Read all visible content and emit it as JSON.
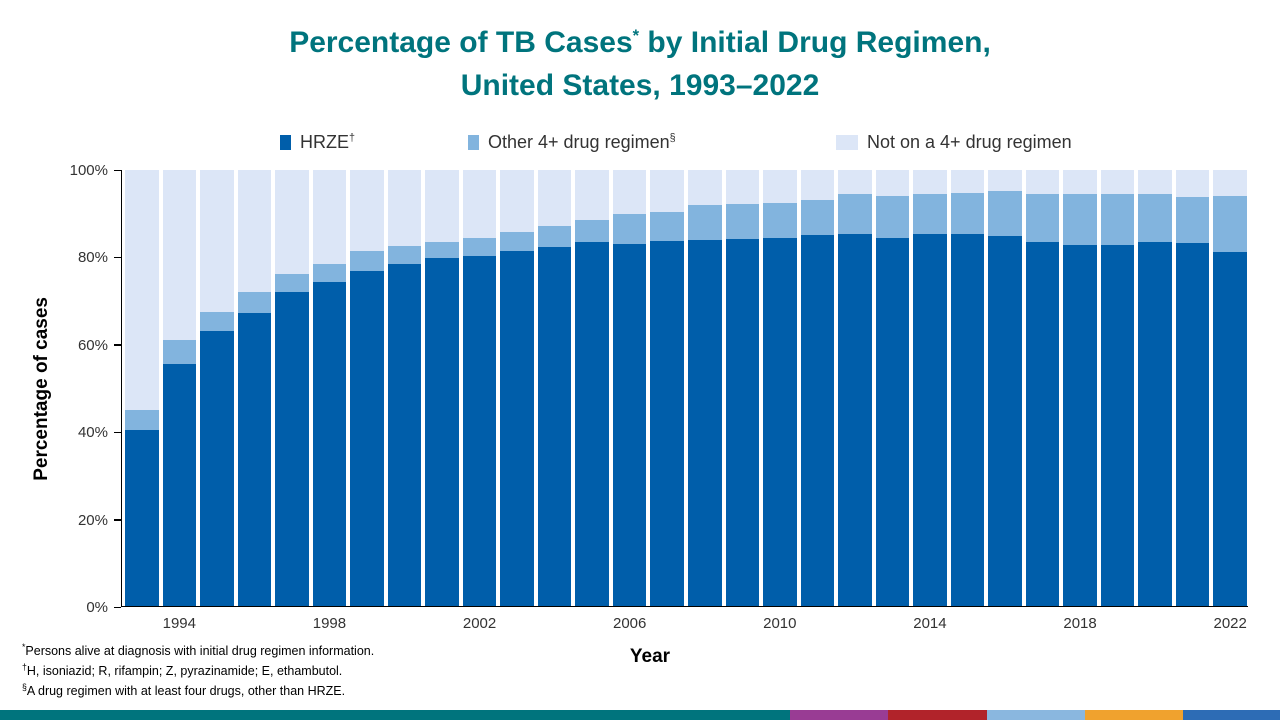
{
  "title": {
    "text_before_sup": "Percentage of TB Cases",
    "sup": "*",
    "text_after_sup": " by Initial Drug Regimen,",
    "line2": "United States, 1993–2022"
  },
  "legend": {
    "items": [
      {
        "label": "HRZE",
        "sup": "†",
        "color": "#005EAA"
      },
      {
        "label": "Other 4+ drug regimen",
        "sup": "§",
        "color": "#82B4DE"
      },
      {
        "label": "Not on a 4+ drug regimen",
        "sup": "",
        "color": "#DCE6F7"
      }
    ]
  },
  "axes": {
    "y_label": "Percentage of cases",
    "x_label": "Year",
    "y_ticks": [
      "0%",
      "20%",
      "40%",
      "60%",
      "80%",
      "100%"
    ],
    "x_ticks": [
      "1994",
      "1998",
      "2002",
      "2006",
      "2010",
      "2014",
      "2018",
      "2022"
    ]
  },
  "chart_data": {
    "type": "bar",
    "stacked": true,
    "title": "Percentage of TB Cases by Initial Drug Regimen, United States, 1993–2022",
    "xlabel": "Year",
    "ylabel": "Percentage of cases",
    "ylim": [
      0,
      100
    ],
    "legend_position": "top",
    "grid": false,
    "categories": [
      1993,
      1994,
      1995,
      1996,
      1997,
      1998,
      1999,
      2000,
      2001,
      2002,
      2003,
      2004,
      2005,
      2006,
      2007,
      2008,
      2009,
      2010,
      2011,
      2012,
      2013,
      2014,
      2015,
      2016,
      2017,
      2018,
      2019,
      2020,
      2021,
      2022
    ],
    "series": [
      {
        "name": "HRZE",
        "color": "#005EAA",
        "values": [
          40.3,
          55.5,
          63.0,
          67.2,
          72.0,
          74.4,
          76.8,
          78.4,
          79.8,
          80.3,
          81.4,
          82.3,
          83.4,
          83.1,
          83.7,
          83.9,
          84.2,
          84.4,
          85.0,
          85.4,
          84.4,
          85.4,
          85.4,
          84.9,
          83.4,
          82.9,
          82.9,
          83.4,
          83.3,
          81.1
        ]
      },
      {
        "name": "Other 4+ drug regimen",
        "color": "#82B4DE",
        "values": [
          4.7,
          5.5,
          4.5,
          4.8,
          4.2,
          4.1,
          4.6,
          4.2,
          3.8,
          4.1,
          4.5,
          4.8,
          5.2,
          6.8,
          6.6,
          8.0,
          7.9,
          8.1,
          8.2,
          9.2,
          9.7,
          9.2,
          9.3,
          10.2,
          11.2,
          11.7,
          11.7,
          11.2,
          10.6,
          13.0
        ]
      },
      {
        "name": "Not on a 4+ drug regimen",
        "color": "#DCE6F7",
        "values": [
          55.0,
          39.0,
          32.5,
          28.0,
          23.8,
          21.5,
          18.6,
          17.4,
          16.4,
          15.6,
          14.1,
          12.9,
          11.4,
          10.1,
          9.7,
          8.1,
          7.9,
          7.5,
          6.8,
          5.4,
          5.9,
          5.4,
          5.3,
          4.9,
          5.4,
          5.4,
          5.4,
          5.4,
          6.1,
          5.9
        ]
      }
    ]
  },
  "footnotes": [
    {
      "sup": "*",
      "text": "Persons alive at diagnosis with initial drug regimen information."
    },
    {
      "sup": "†",
      "text": "H, isoniazid; R, rifampin; Z, pyrazinamide; E, ethambutol."
    },
    {
      "sup": "§",
      "text": "A drug regimen with at least four drugs, other than HRZE."
    }
  ],
  "footer_ribbon": [
    {
      "color": "#00747D",
      "width": "61.7%"
    },
    {
      "color": "#993C94",
      "width": "7.7%"
    },
    {
      "color": "#B1232A",
      "width": "7.7%"
    },
    {
      "color": "#8AB7DF",
      "width": "7.7%"
    },
    {
      "color": "#F0A22E",
      "width": "7.6%"
    },
    {
      "color": "#2D6CB5",
      "width": "7.6%"
    }
  ]
}
